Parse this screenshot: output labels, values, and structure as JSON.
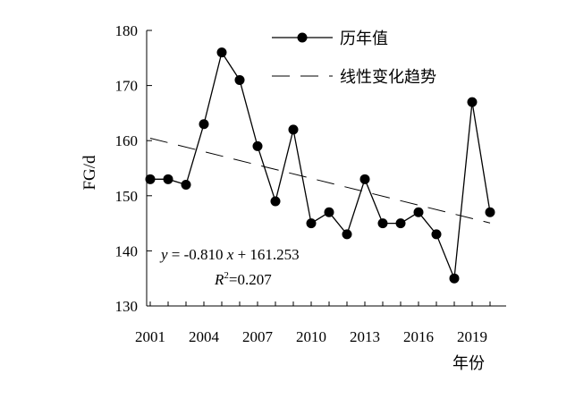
{
  "chart_data": {
    "type": "line",
    "xlabel": "年份",
    "ylabel": "FG/d",
    "ylim": [
      130,
      180
    ],
    "xlim": [
      2001,
      2020
    ],
    "yticks": [
      130,
      140,
      150,
      160,
      170,
      180
    ],
    "xticks": [
      2001,
      2004,
      2007,
      2010,
      2013,
      2016,
      2019
    ],
    "grid": false,
    "legend_position": "top-right",
    "series": [
      {
        "name": "历年值",
        "x": [
          2001,
          2002,
          2003,
          2004,
          2005,
          2006,
          2007,
          2008,
          2009,
          2010,
          2011,
          2012,
          2013,
          2014,
          2015,
          2016,
          2017,
          2018,
          2019,
          2020
        ],
        "values": [
          153,
          153,
          152,
          163,
          176,
          171,
          159,
          149,
          162,
          145,
          147,
          143,
          153,
          145,
          145,
          147,
          143,
          135,
          167,
          147
        ],
        "color": "#000000",
        "marker": "circle"
      }
    ],
    "trend": {
      "name": "线性变化趋势",
      "slope": -0.81,
      "intercept": 161.253,
      "style": "dashed"
    },
    "annotations": {
      "equation": "y = -0.810 x + 161.253",
      "r2": "R²=0.207"
    }
  }
}
